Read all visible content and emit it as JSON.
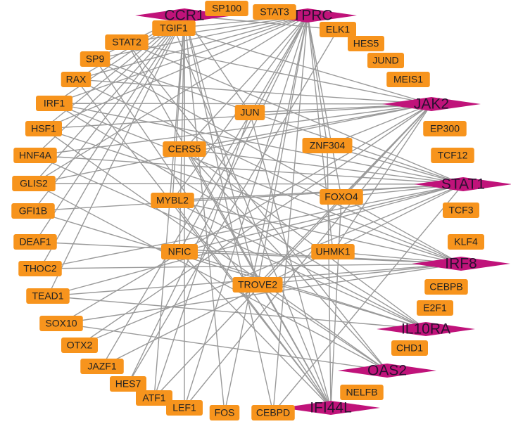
{
  "nodes": [
    {
      "label": "CCR1",
      "kind": "hub"
    },
    {
      "label": "PTPRC",
      "kind": "hub"
    },
    {
      "label": "JAK2",
      "kind": "hub"
    },
    {
      "label": "STAT1",
      "kind": "hub"
    },
    {
      "label": "IRF8",
      "kind": "hub"
    },
    {
      "label": "IL10RA",
      "kind": "hub"
    },
    {
      "label": "OAS2",
      "kind": "hub"
    },
    {
      "label": "IFI44L",
      "kind": "hub"
    },
    {
      "label": "SP100",
      "kind": "tf"
    },
    {
      "label": "STAT3",
      "kind": "tf"
    },
    {
      "label": "TGIF1",
      "kind": "tf"
    },
    {
      "label": "STAT2",
      "kind": "tf"
    },
    {
      "label": "ELK1",
      "kind": "tf"
    },
    {
      "label": "HES5",
      "kind": "tf"
    },
    {
      "label": "SP9",
      "kind": "tf"
    },
    {
      "label": "JUND",
      "kind": "tf"
    },
    {
      "label": "RAX",
      "kind": "tf"
    },
    {
      "label": "MEIS1",
      "kind": "tf"
    },
    {
      "label": "IRF1",
      "kind": "tf"
    },
    {
      "label": "JUN",
      "kind": "tf"
    },
    {
      "label": "EP300",
      "kind": "tf"
    },
    {
      "label": "HSF1",
      "kind": "tf"
    },
    {
      "label": "CERS5",
      "kind": "tf"
    },
    {
      "label": "ZNF304",
      "kind": "tf"
    },
    {
      "label": "HNF4A",
      "kind": "tf"
    },
    {
      "label": "TCF12",
      "kind": "tf"
    },
    {
      "label": "GLIS2",
      "kind": "tf"
    },
    {
      "label": "MYBL2",
      "kind": "tf"
    },
    {
      "label": "FOXO4",
      "kind": "tf"
    },
    {
      "label": "TCF3",
      "kind": "tf"
    },
    {
      "label": "GFI1B",
      "kind": "tf"
    },
    {
      "label": "DEAF1",
      "kind": "tf"
    },
    {
      "label": "KLF4",
      "kind": "tf"
    },
    {
      "label": "NFIC",
      "kind": "tf"
    },
    {
      "label": "UHMK1",
      "kind": "tf"
    },
    {
      "label": "THOC2",
      "kind": "tf"
    },
    {
      "label": "TROVE2",
      "kind": "tf"
    },
    {
      "label": "CEBPB",
      "kind": "tf"
    },
    {
      "label": "TEAD1",
      "kind": "tf"
    },
    {
      "label": "E2F1",
      "kind": "tf"
    },
    {
      "label": "SOX10",
      "kind": "tf"
    },
    {
      "label": "CHD1",
      "kind": "tf"
    },
    {
      "label": "OTX2",
      "kind": "tf"
    },
    {
      "label": "JAZF1",
      "kind": "tf"
    },
    {
      "label": "NELFB",
      "kind": "tf"
    },
    {
      "label": "HES7",
      "kind": "tf"
    },
    {
      "label": "ATF1",
      "kind": "tf"
    },
    {
      "label": "LEF1",
      "kind": "tf"
    },
    {
      "label": "FOS",
      "kind": "tf"
    },
    {
      "label": "CEBPD",
      "kind": "tf"
    }
  ],
  "edges": [
    [
      0,
      14
    ],
    [
      0,
      16
    ],
    [
      0,
      18
    ],
    [
      0,
      21
    ],
    [
      0,
      24
    ],
    [
      0,
      26
    ],
    [
      0,
      30
    ],
    [
      0,
      31
    ],
    [
      0,
      35
    ],
    [
      0,
      38
    ],
    [
      0,
      22
    ],
    [
      0,
      27
    ],
    [
      0,
      33
    ],
    [
      0,
      36
    ],
    [
      0,
      46
    ],
    [
      0,
      47
    ],
    [
      0,
      48
    ],
    [
      0,
      49
    ],
    [
      0,
      12
    ],
    [
      0,
      19
    ],
    [
      1,
      10
    ],
    [
      1,
      11
    ],
    [
      1,
      14
    ],
    [
      1,
      16
    ],
    [
      1,
      18
    ],
    [
      1,
      21
    ],
    [
      1,
      26
    ],
    [
      1,
      22
    ],
    [
      1,
      27
    ],
    [
      1,
      33
    ],
    [
      1,
      34
    ],
    [
      1,
      36
    ],
    [
      1,
      43
    ],
    [
      1,
      45
    ],
    [
      1,
      47
    ],
    [
      1,
      48
    ],
    [
      1,
      49
    ],
    [
      1,
      28
    ],
    [
      1,
      23
    ],
    [
      2,
      10
    ],
    [
      2,
      11
    ],
    [
      2,
      16
    ],
    [
      2,
      18
    ],
    [
      2,
      21
    ],
    [
      2,
      24
    ],
    [
      2,
      26
    ],
    [
      2,
      22
    ],
    [
      2,
      23
    ],
    [
      2,
      28
    ],
    [
      2,
      34
    ],
    [
      2,
      36
    ],
    [
      2,
      40
    ],
    [
      2,
      42
    ],
    [
      2,
      46
    ],
    [
      2,
      47
    ],
    [
      2,
      19
    ],
    [
      3,
      11
    ],
    [
      3,
      14
    ],
    [
      3,
      18
    ],
    [
      3,
      24
    ],
    [
      3,
      26
    ],
    [
      3,
      22
    ],
    [
      3,
      27
    ],
    [
      3,
      28
    ],
    [
      3,
      30
    ],
    [
      3,
      33
    ],
    [
      3,
      35
    ],
    [
      3,
      38
    ],
    [
      3,
      42
    ],
    [
      3,
      43
    ],
    [
      3,
      23
    ],
    [
      3,
      49
    ],
    [
      4,
      14
    ],
    [
      4,
      16
    ],
    [
      4,
      18
    ],
    [
      4,
      21
    ],
    [
      4,
      27
    ],
    [
      4,
      31
    ],
    [
      4,
      33
    ],
    [
      4,
      35
    ],
    [
      4,
      38
    ],
    [
      4,
      40
    ],
    [
      4,
      36
    ],
    [
      4,
      34
    ],
    [
      5,
      18
    ],
    [
      5,
      24
    ],
    [
      5,
      30
    ],
    [
      5,
      22
    ],
    [
      5,
      27
    ],
    [
      5,
      33
    ],
    [
      5,
      38
    ],
    [
      6,
      11
    ],
    [
      6,
      21
    ],
    [
      6,
      26
    ],
    [
      6,
      22
    ],
    [
      6,
      36
    ],
    [
      6,
      40
    ],
    [
      7,
      10
    ],
    [
      7,
      11
    ],
    [
      7,
      14
    ],
    [
      7,
      16
    ],
    [
      7,
      19
    ],
    [
      7,
      22
    ],
    [
      7,
      27
    ],
    [
      7,
      23
    ],
    [
      7,
      28
    ],
    [
      7,
      33
    ],
    [
      19,
      46
    ],
    [
      12,
      45
    ]
  ]
}
